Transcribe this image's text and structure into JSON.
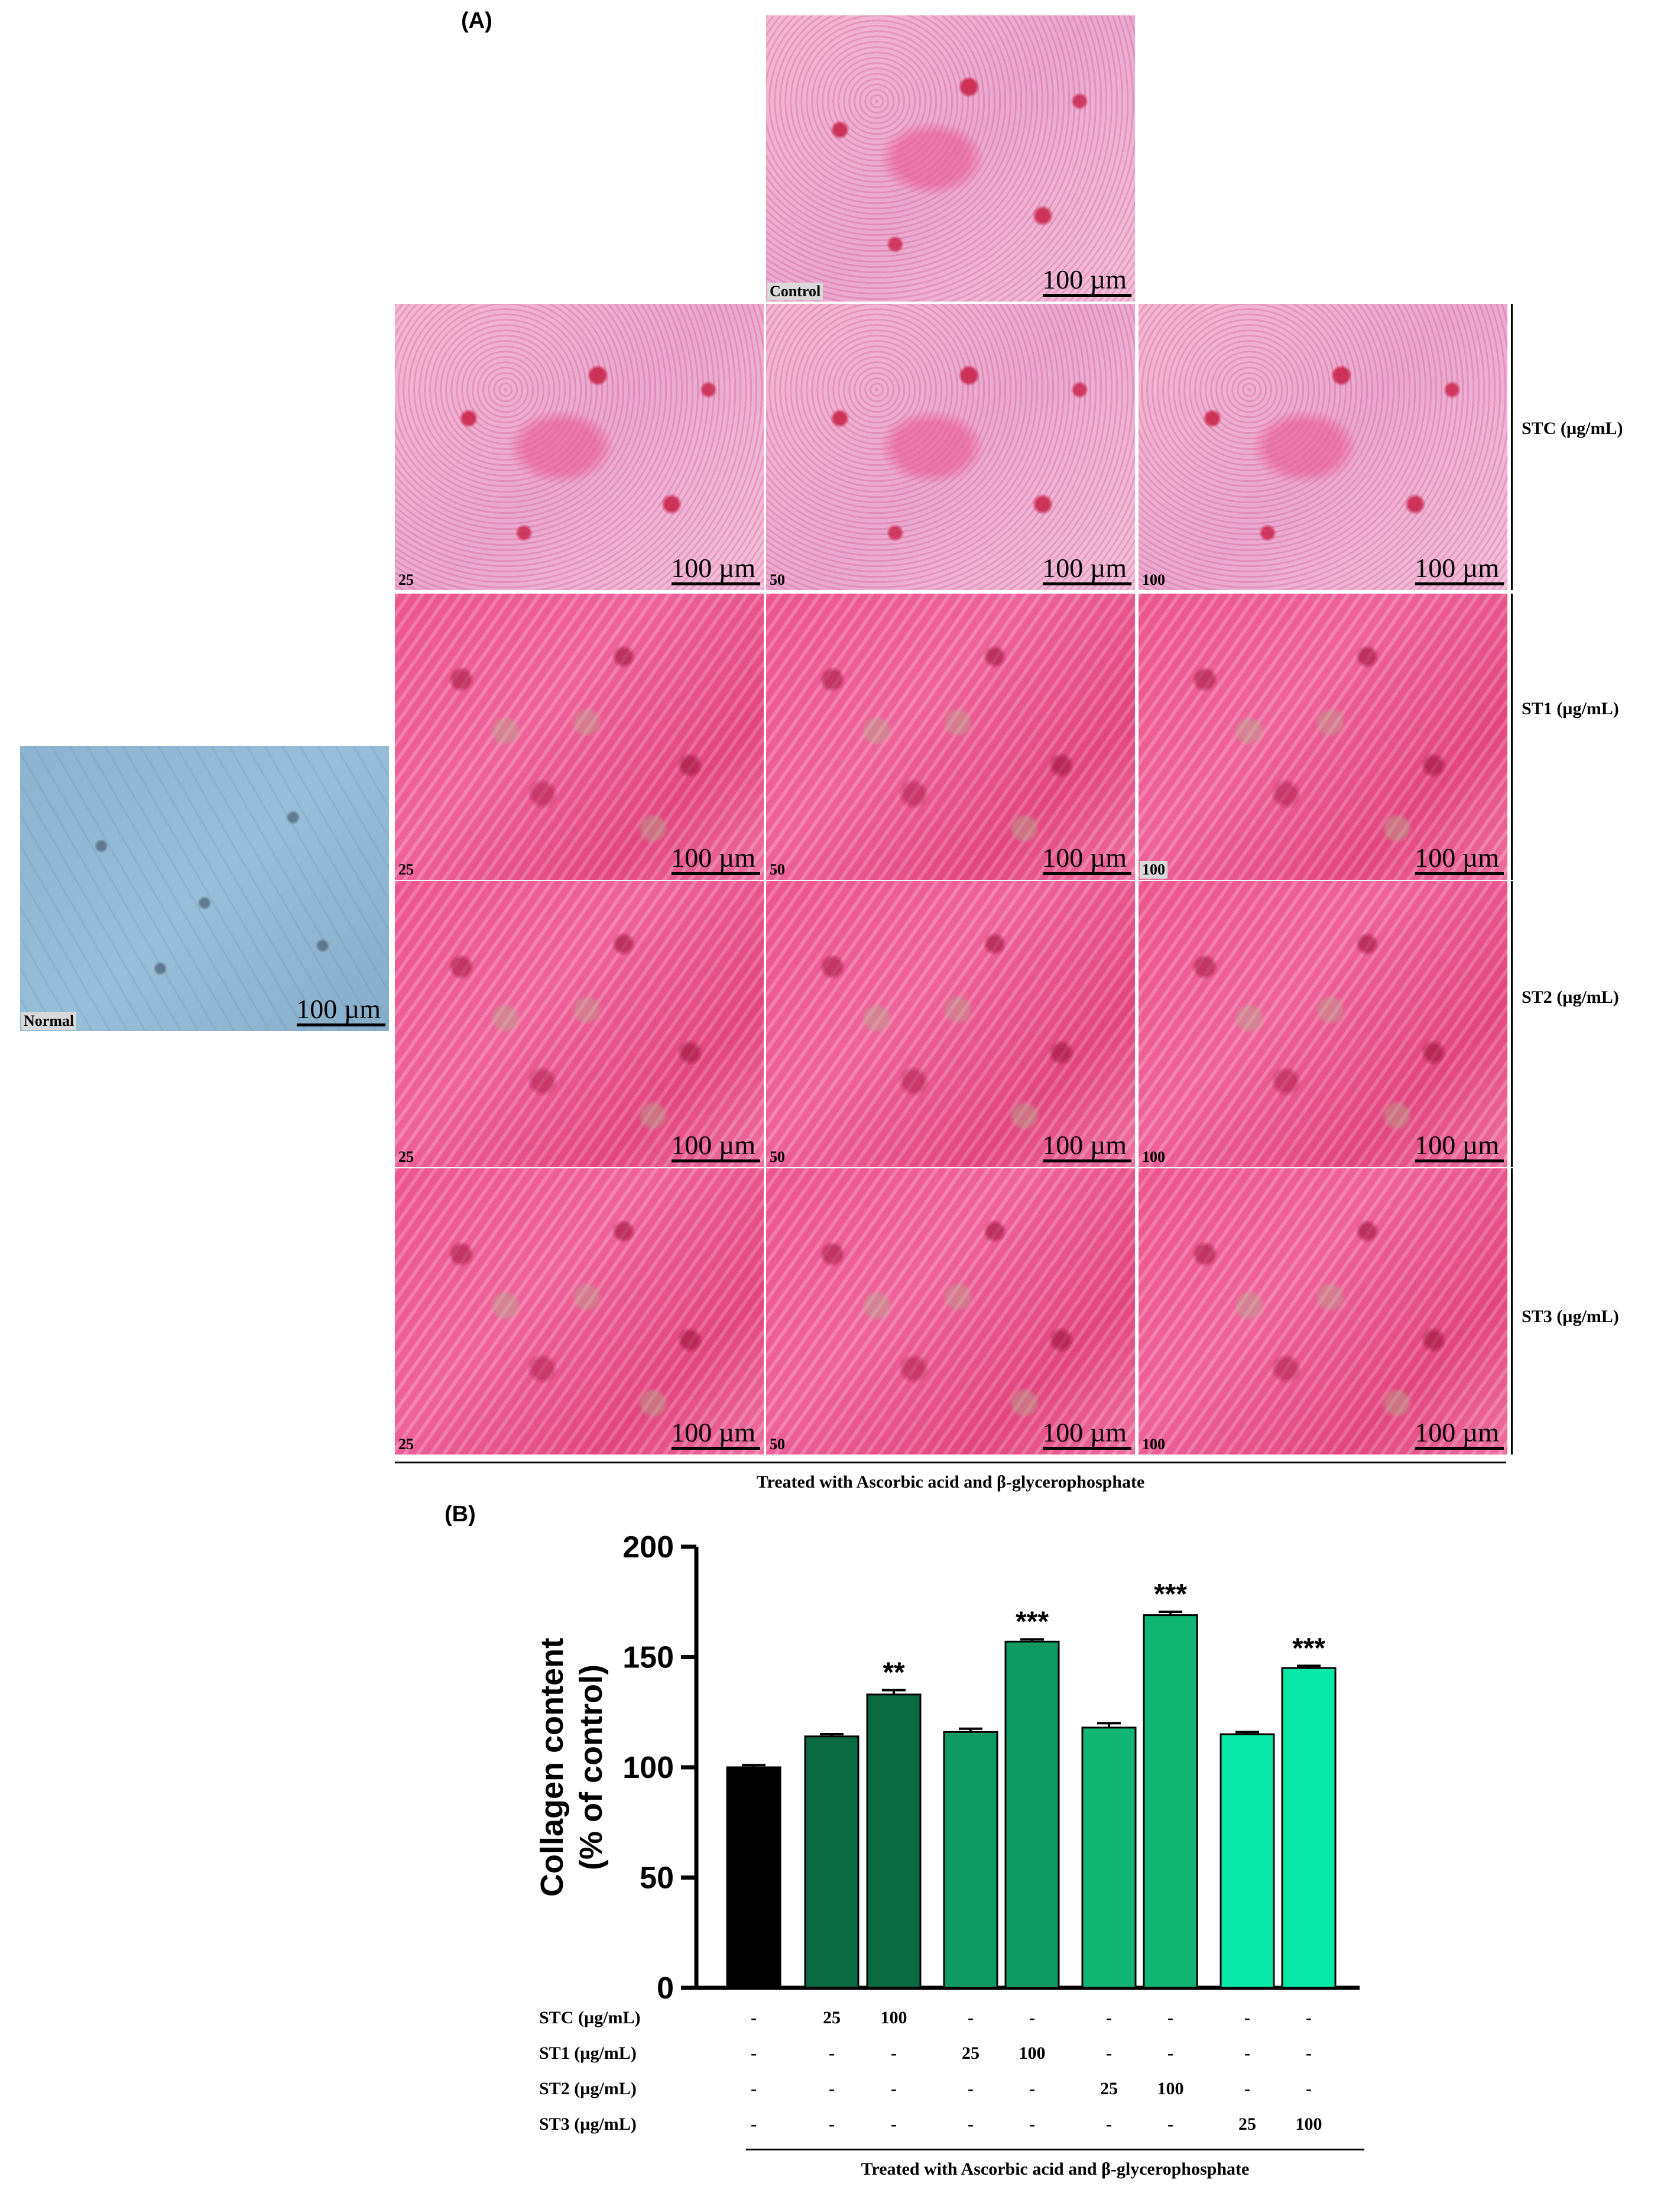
{
  "panel_a": {
    "label": "(A)",
    "scale_label": "100 µm",
    "normal_label": "Normal",
    "control_label": "Control",
    "doses": [
      "25",
      "50",
      "100"
    ],
    "row_labels": [
      "STC (µg/mL)",
      "ST1 (µg/mL)",
      "ST2 (µg/mL)",
      "ST3 (µg/mL)"
    ],
    "caption": "Treated with Ascorbic acid and β-glycerophosphate"
  },
  "panel_b": {
    "label": "(B)",
    "caption": "Treated with Ascorbic acid and β-glycerophosphate",
    "table": {
      "rows": [
        {
          "label": "STC (µg/mL)",
          "cells": [
            "-",
            "25",
            "100",
            "-",
            "-",
            "-",
            "-",
            "-",
            "-"
          ]
        },
        {
          "label": "ST1 (µg/mL)",
          "cells": [
            "-",
            "-",
            "-",
            "25",
            "100",
            "-",
            "-",
            "-",
            "-"
          ]
        },
        {
          "label": "ST2 (µg/mL)",
          "cells": [
            "-",
            "-",
            "-",
            "-",
            "-",
            "25",
            "100",
            "-",
            "-"
          ]
        },
        {
          "label": "ST3 (µg/mL)",
          "cells": [
            "-",
            "-",
            "-",
            "-",
            "-",
            "-",
            "-",
            "25",
            "100"
          ]
        }
      ]
    }
  },
  "chart_data": {
    "type": "bar",
    "title": "",
    "ylabel": "Collagen content\n(% of control)",
    "ylim": [
      0,
      200
    ],
    "yticks": [
      0,
      50,
      100,
      150,
      200
    ],
    "categories": [
      "Control",
      "STC 25",
      "STC 100",
      "ST1 25",
      "ST1 100",
      "ST2 25",
      "ST2 100",
      "ST3 25",
      "ST3 100"
    ],
    "values": [
      100,
      114,
      133,
      116,
      157,
      118,
      169,
      115,
      145
    ],
    "errors": [
      1,
      1,
      2,
      1.5,
      1,
      2,
      1.5,
      1,
      1
    ],
    "significance": [
      "",
      "",
      "**",
      "",
      "***",
      "",
      "***",
      "",
      "***"
    ],
    "colors": [
      "#000000",
      "#0a6b43",
      "#0a6b43",
      "#0e9a62",
      "#0e9a62",
      "#11b674",
      "#11b674",
      "#0ae8a8",
      "#0ae8a8"
    ]
  }
}
